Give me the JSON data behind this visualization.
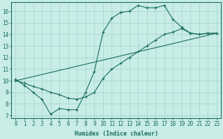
{
  "background_color": "#c8ece6",
  "grid_color": "#a8d8d0",
  "line_color": "#1a6e5e",
  "xlim": [
    -0.5,
    23.5
  ],
  "ylim": [
    6.8,
    16.8
  ],
  "xlabel": "Humidex (Indice chaleur)",
  "xticks": [
    0,
    1,
    2,
    3,
    4,
    5,
    6,
    7,
    8,
    9,
    10,
    11,
    12,
    13,
    14,
    15,
    16,
    17,
    18,
    19,
    20,
    21,
    22,
    23
  ],
  "yticks": [
    7,
    8,
    9,
    10,
    11,
    12,
    13,
    14,
    15,
    16
  ],
  "curve1_x": [
    0,
    1,
    2,
    3,
    4,
    5,
    6,
    7,
    8,
    9,
    10,
    11,
    12,
    13,
    14,
    15,
    16,
    17,
    18,
    19,
    20,
    21,
    22,
    23
  ],
  "curve1_y": [
    10.1,
    9.6,
    9.0,
    8.4,
    7.1,
    7.6,
    7.5,
    7.5,
    9.0,
    10.8,
    14.2,
    15.4,
    15.9,
    16.0,
    16.5,
    16.3,
    16.3,
    16.5,
    15.3,
    14.6,
    14.1,
    14.0,
    14.1,
    14.1
  ],
  "curve2_x": [
    0,
    1,
    2,
    3,
    4,
    5,
    6,
    7,
    8,
    9,
    10,
    11,
    12,
    13,
    14,
    15,
    16,
    17,
    18,
    19,
    20,
    21,
    22,
    23
  ],
  "curve2_y": [
    10.0,
    9.8,
    9.5,
    9.3,
    9.0,
    8.8,
    8.5,
    8.4,
    8.6,
    9.0,
    10.2,
    11.0,
    11.5,
    12.0,
    12.5,
    13.0,
    13.5,
    14.0,
    14.2,
    14.5,
    14.1,
    14.0,
    14.1,
    14.1
  ],
  "curve3_x": [
    0,
    23
  ],
  "curve3_y": [
    10.0,
    14.1
  ]
}
